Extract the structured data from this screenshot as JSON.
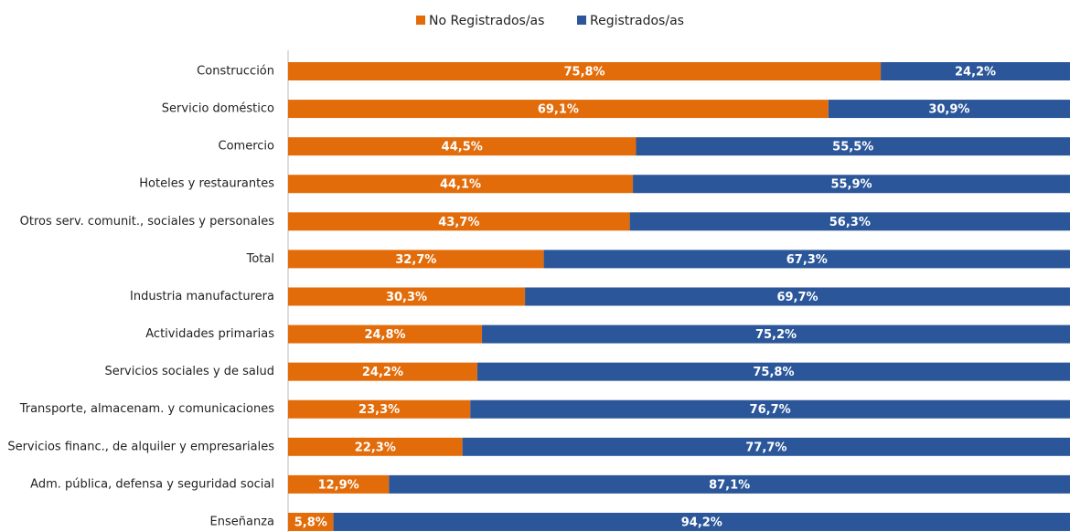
{
  "chart_data": {
    "type": "stacked_bar_horizontal",
    "categories": [
      "Construcción",
      "Servicio doméstico",
      "Comercio",
      "Hoteles y restaurantes",
      "Otros serv. comunit., sociales y personales",
      "Total",
      "Industria manufacturera",
      "Actividades primarias",
      "Servicios sociales y de salud",
      "Transporte, almacenam. y comunicaciones",
      "Servicios financ., de alquiler y empresariales",
      "Adm. pública, defensa y seguridad social",
      "Enseñanza"
    ],
    "series": [
      {
        "name": "No Registrados/as",
        "color": "#e36c0a",
        "values": [
          75.8,
          69.1,
          44.5,
          44.1,
          43.7,
          32.7,
          30.3,
          24.8,
          24.2,
          23.3,
          22.3,
          12.9,
          5.8
        ],
        "value_labels": [
          "75,8%",
          "69,1%",
          "44,5%",
          "44,1%",
          "43,7%",
          "32,7%",
          "30,3%",
          "24,8%",
          "24,2%",
          "23,3%",
          "22,3%",
          "12,9%",
          "5,8%"
        ]
      },
      {
        "name": "Registrados/as",
        "color": "#2b579a",
        "values": [
          24.2,
          30.9,
          55.5,
          55.9,
          56.3,
          67.3,
          69.7,
          75.2,
          75.8,
          76.7,
          77.7,
          87.1,
          94.2
        ],
        "value_labels": [
          "24,2%",
          "30,9%",
          "55,5%",
          "55,9%",
          "56,3%",
          "67,3%",
          "69,7%",
          "75,2%",
          "75,8%",
          "76,7%",
          "77,7%",
          "87,1%",
          "94,2%"
        ]
      }
    ],
    "xlim": [
      0,
      100
    ],
    "legend": "top"
  }
}
